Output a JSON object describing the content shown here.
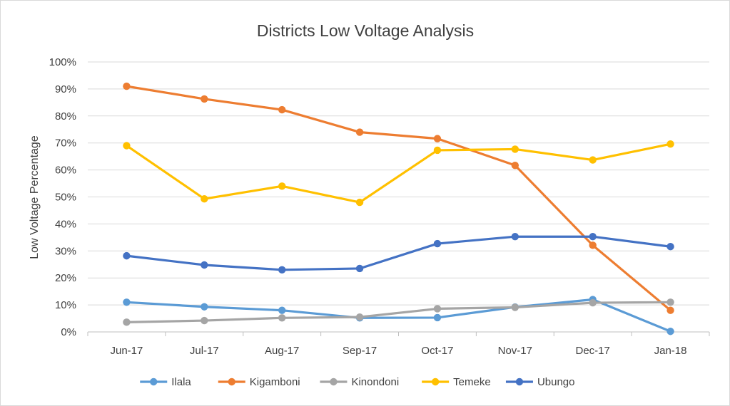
{
  "chart_data": {
    "type": "line",
    "title": "Districts Low Voltage Analysis",
    "xlabel": "",
    "ylabel": "Low Voltage Percentage",
    "categories": [
      "Jun-17",
      "Jul-17",
      "Aug-17",
      "Sep-17",
      "Oct-17",
      "Nov-17",
      "Dec-17",
      "Jan-18"
    ],
    "yticks": [
      "0%",
      "10%",
      "20%",
      "30%",
      "40%",
      "50%",
      "60%",
      "70%",
      "80%",
      "90%",
      "100%"
    ],
    "ylim": [
      0,
      100
    ],
    "grid": true,
    "legend_position": "bottom",
    "series": [
      {
        "name": "Ilala",
        "color": "#5b9bd5",
        "values": [
          11,
          9.3,
          8,
          5.2,
          5.3,
          9.2,
          12,
          0.2
        ]
      },
      {
        "name": "Kigamboni",
        "color": "#ed7d31",
        "values": [
          91,
          86.3,
          82.3,
          74,
          71.6,
          61.7,
          32.1,
          8
        ]
      },
      {
        "name": "Kinondoni",
        "color": "#a5a5a5",
        "values": [
          3.6,
          4.2,
          5.2,
          5.5,
          8.6,
          9.1,
          10.8,
          11
        ]
      },
      {
        "name": "Temeke",
        "color": "#ffc000",
        "values": [
          69,
          49.3,
          54,
          48,
          67.3,
          67.7,
          63.7,
          69.6
        ]
      },
      {
        "name": "Ubungo",
        "color": "#4472c4",
        "values": [
          28.2,
          24.8,
          23,
          23.5,
          32.7,
          35.3,
          35.3,
          31.6
        ]
      }
    ]
  }
}
